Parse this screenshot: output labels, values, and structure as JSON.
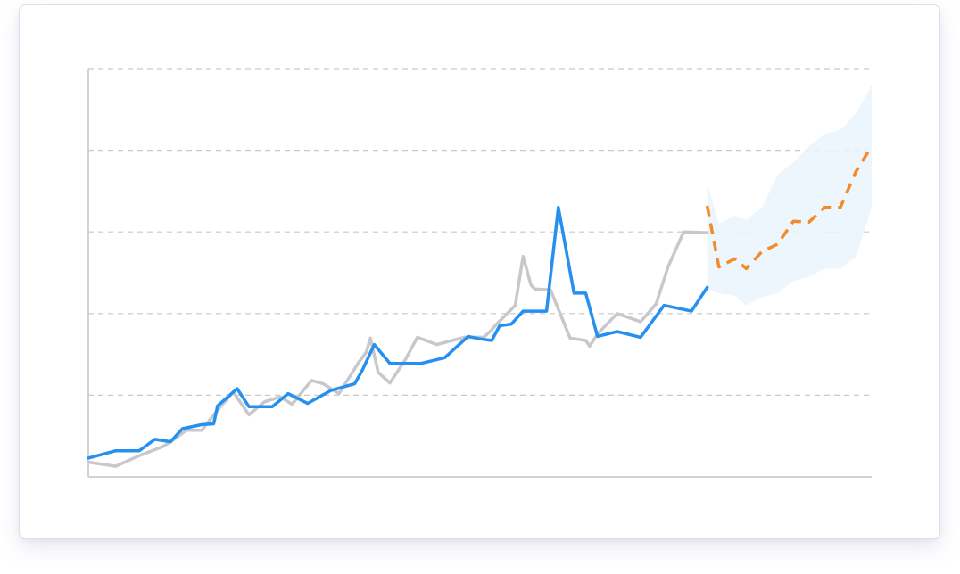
{
  "chart_data": {
    "type": "line",
    "title": "",
    "xlabel": "",
    "ylabel": "",
    "xlim": [
      0,
      100
    ],
    "ylim": [
      0,
      500
    ],
    "grid": true,
    "series": [
      {
        "role": "actual-grey",
        "color": "#c8c7cc",
        "style": "solid",
        "x": [
          0,
          3.5,
          6.5,
          9.5,
          10.5,
          12.5,
          14.5,
          16,
          18.5,
          20.5,
          22.5,
          24.5,
          26,
          28.5,
          30,
          32,
          34.5,
          35.5,
          36,
          37,
          38.5,
          40.5,
          42,
          44.5,
          48,
          50.5,
          51.5,
          52,
          54,
          54.5,
          55.5,
          56.5,
          57,
          59,
          61.5,
          63.5,
          64,
          65,
          67.5,
          70.5,
          72.5,
          74,
          76,
          79
        ],
        "y": [
          18,
          13,
          26,
          37,
          43,
          57,
          57,
          76,
          104,
          76,
          92,
          98,
          89,
          118,
          114,
          102,
          140,
          153,
          170,
          128,
          115,
          144,
          171,
          162,
          171,
          171,
          180,
          186,
          205,
          210,
          270,
          235,
          230,
          229,
          170,
          167,
          160,
          175,
          200,
          190,
          212,
          257,
          300,
          299
        ]
      },
      {
        "role": "actual-blue",
        "color": "#2690f0",
        "style": "solid",
        "x": [
          0,
          3.5,
          6.5,
          8.5,
          10.5,
          12,
          14.5,
          16,
          16.5,
          19,
          20.5,
          23.5,
          25.5,
          28,
          31,
          34,
          35,
          36.5,
          38.5,
          40,
          42.5,
          45.5,
          48.5,
          50,
          51.5,
          52.5,
          54,
          55.5,
          58.5,
          60,
          62,
          63.5,
          65,
          67.5,
          70.5,
          73.5,
          77,
          79
        ],
        "y": [
          23,
          32,
          32,
          46,
          43,
          59,
          64,
          65,
          87,
          108,
          86,
          86,
          102,
          90,
          106,
          114,
          131,
          162,
          139,
          139,
          139,
          146,
          172,
          169,
          167,
          185,
          187,
          203,
          203,
          330,
          225,
          225,
          172,
          178,
          171,
          210,
          203,
          232
        ]
      },
      {
        "role": "forecast",
        "color": "#f28c28",
        "style": "dashed",
        "x": [
          79,
          80.5,
          82.5,
          84,
          86,
          88,
          90,
          92,
          94,
          96,
          98,
          100
        ],
        "y": [
          332,
          257,
          267,
          255,
          276,
          285,
          313,
          312,
          330,
          330,
          374,
          405
        ]
      }
    ],
    "band": {
      "color": "#eaf4fb",
      "x": [
        79,
        80.5,
        82.5,
        84,
        86,
        88,
        90,
        92,
        94,
        96,
        98,
        100
      ],
      "upper": [
        360,
        310,
        320,
        315,
        330,
        370,
        385,
        405,
        420,
        425,
        445,
        480
      ],
      "lower": [
        230,
        225,
        222,
        210,
        220,
        225,
        240,
        245,
        255,
        255,
        270,
        330
      ]
    },
    "gridlines": [
      0,
      100,
      200,
      300,
      400,
      500
    ]
  }
}
